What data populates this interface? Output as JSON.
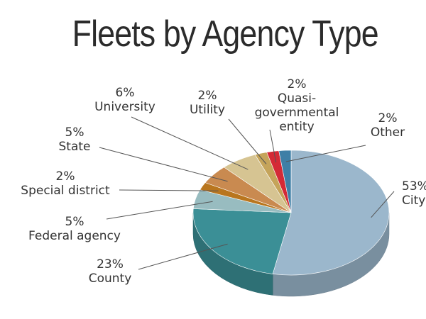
{
  "title": "Fleets by Agency Type",
  "colors": {
    "City": "#9bb7cc",
    "County": "#3b8f96",
    "Federal agency": "#98bcc0",
    "Special district": "#b9761e",
    "State": "#c98a50",
    "University": "#d6c492",
    "Utility": "#c5a45a",
    "Quasi-governmental entity": "#d42a36",
    "Other": "#3f7fa6"
  },
  "chart_data": {
    "type": "pie",
    "title": "Fleets by Agency Type",
    "unit": "%",
    "slices": [
      {
        "label": "City",
        "value": 53,
        "text": "53%",
        "name": "City"
      },
      {
        "label": "County",
        "value": 23,
        "text": "23%",
        "name": "County"
      },
      {
        "label": "Federal agency",
        "value": 5,
        "text": "5%",
        "name": "Federal agency"
      },
      {
        "label": "Special district",
        "value": 2,
        "text": "2%",
        "name": "Special district"
      },
      {
        "label": "State",
        "value": 5,
        "text": "5%",
        "name": "State"
      },
      {
        "label": "University",
        "value": 6,
        "text": "6%",
        "name": "University"
      },
      {
        "label": "Utility",
        "value": 2,
        "text": "2%",
        "name": "Utility"
      },
      {
        "label": "Quasi-governmental entity",
        "value": 2,
        "text": "2%",
        "name_lines": [
          "Quasi-",
          "governmental",
          "entity"
        ]
      },
      {
        "label": "Other",
        "value": 2,
        "text": "2%",
        "name": "Other"
      }
    ]
  }
}
